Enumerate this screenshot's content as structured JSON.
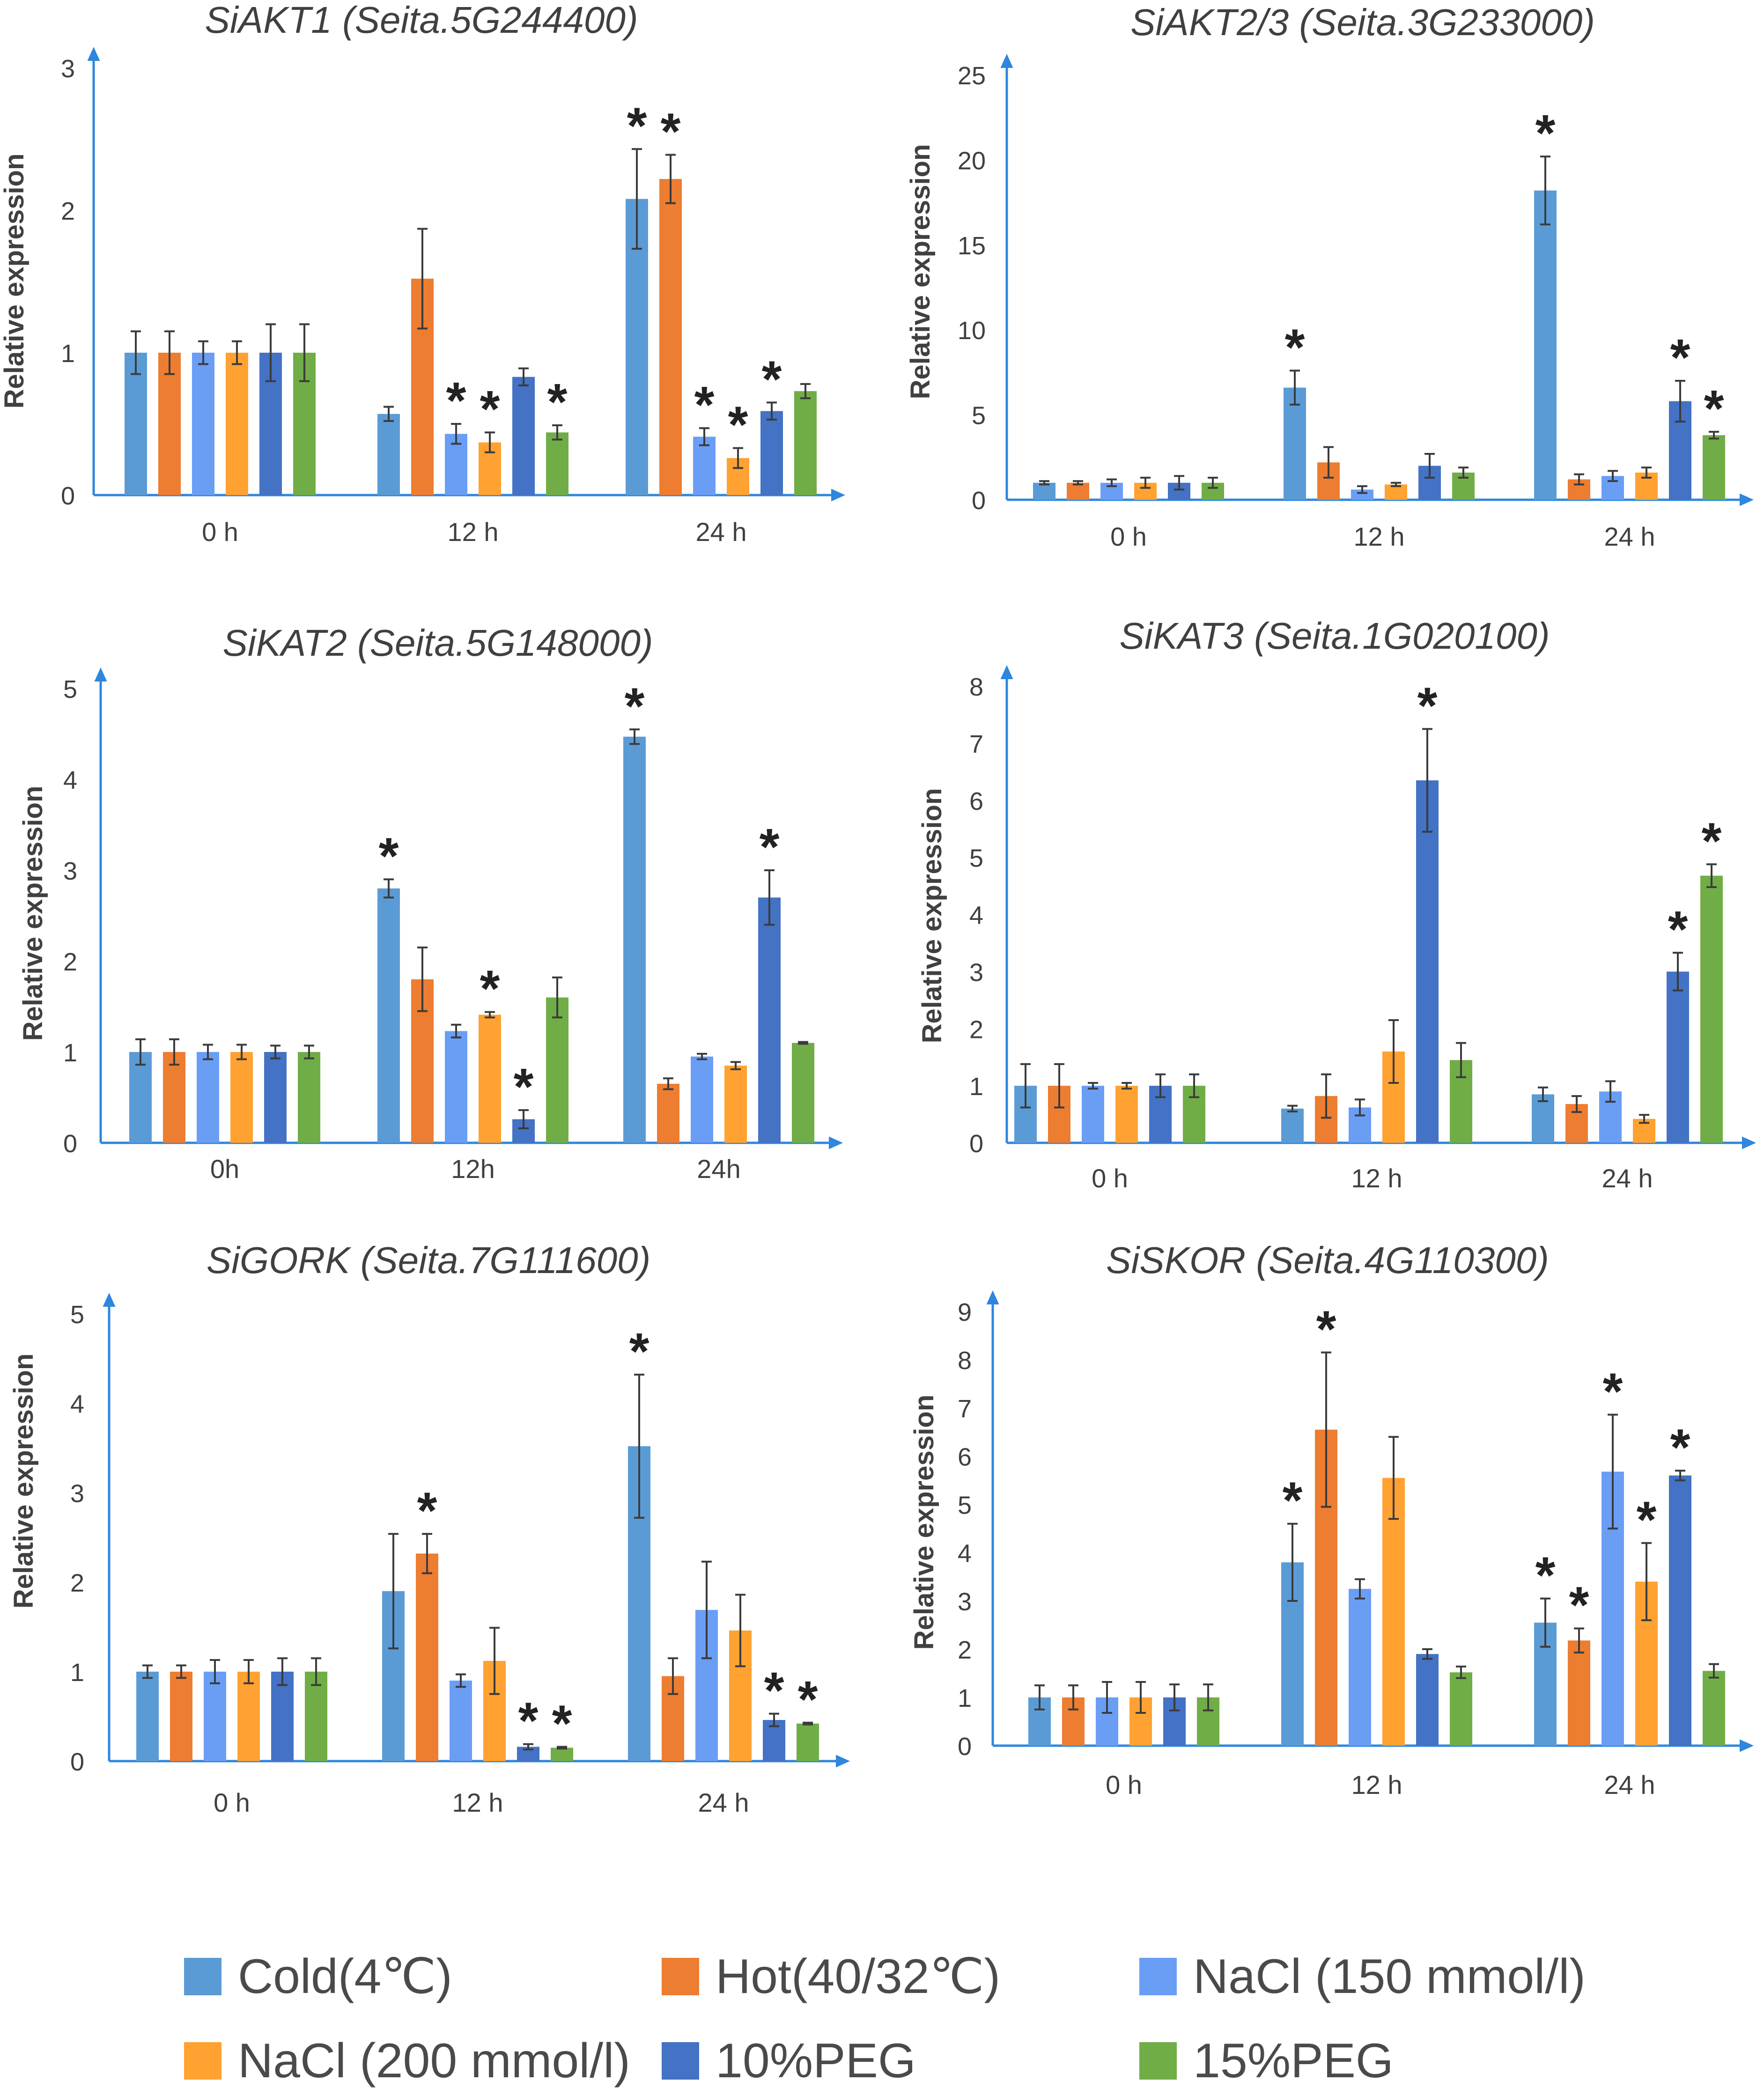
{
  "legend": [
    {
      "name": "Cold(4℃)",
      "color": "#5b9bd5"
    },
    {
      "name": "Hot(40/32℃)",
      "color": "#ed7d31"
    },
    {
      "name": "NaCl (150 mmol/l)",
      "color": "#6a9ef5"
    },
    {
      "name": "NaCl (200 mmol/l)",
      "color": "#ffa232"
    },
    {
      "name": "10%PEG",
      "color": "#4472c4"
    },
    {
      "name": "15%PEG",
      "color": "#70ad47"
    }
  ],
  "chart_data": [
    {
      "type": "bar",
      "title": "SiAKT1 (Seita.5G244400)",
      "ylabel": "Relative expression",
      "categories": [
        "0 h",
        "12 h",
        "24 h"
      ],
      "ylim": [
        0,
        3
      ],
      "yticks": [
        "0",
        "1",
        "2",
        "3"
      ],
      "series": [
        {
          "name": "Cold(4℃)",
          "values": [
            1.0,
            0.57,
            2.08
          ],
          "errors": [
            0.15,
            0.05,
            0.35
          ],
          "sig": [
            false,
            false,
            true
          ]
        },
        {
          "name": "Hot(40/32℃)",
          "values": [
            1.0,
            1.52,
            2.22
          ],
          "errors": [
            0.15,
            0.35,
            0.17
          ],
          "sig": [
            false,
            false,
            true
          ]
        },
        {
          "name": "NaCl (150 mmol/l)",
          "values": [
            1.0,
            0.43,
            0.41
          ],
          "errors": [
            0.08,
            0.07,
            0.06
          ],
          "sig": [
            false,
            true,
            true
          ]
        },
        {
          "name": "NaCl (200 mmol/l)",
          "values": [
            1.0,
            0.37,
            0.26
          ],
          "errors": [
            0.08,
            0.07,
            0.07
          ],
          "sig": [
            false,
            true,
            true
          ]
        },
        {
          "name": "10%PEG",
          "values": [
            1.0,
            0.83,
            0.59
          ],
          "errors": [
            0.2,
            0.06,
            0.06
          ],
          "sig": [
            false,
            false,
            true
          ]
        },
        {
          "name": "15%PEG",
          "values": [
            1.0,
            0.44,
            0.73
          ],
          "errors": [
            0.2,
            0.05,
            0.05
          ],
          "sig": [
            false,
            true,
            false
          ]
        }
      ]
    },
    {
      "type": "bar",
      "title": "SiAKT2/3 (Seita.3G233000)",
      "ylabel": "Relative expression",
      "categories": [
        "0 h",
        "12 h",
        "24 h"
      ],
      "ylim": [
        0,
        25
      ],
      "yticks": [
        "0",
        "5",
        "10",
        "15",
        "20",
        "25"
      ],
      "series": [
        {
          "name": "Cold(4℃)",
          "values": [
            1.0,
            6.6,
            18.2
          ],
          "errors": [
            0.1,
            1.0,
            2.0
          ],
          "sig": [
            false,
            true,
            true
          ]
        },
        {
          "name": "Hot(40/32℃)",
          "values": [
            1.0,
            2.2,
            1.2
          ],
          "errors": [
            0.1,
            0.9,
            0.3
          ],
          "sig": [
            false,
            false,
            false
          ]
        },
        {
          "name": "NaCl (150 mmol/l)",
          "values": [
            1.0,
            0.6,
            1.4
          ],
          "errors": [
            0.2,
            0.2,
            0.3
          ],
          "sig": [
            false,
            false,
            false
          ]
        },
        {
          "name": "NaCl (200 mmol/l)",
          "values": [
            1.0,
            0.9,
            1.6
          ],
          "errors": [
            0.3,
            0.1,
            0.3
          ],
          "sig": [
            false,
            false,
            false
          ]
        },
        {
          "name": "10%PEG",
          "values": [
            1.0,
            2.0,
            5.8
          ],
          "errors": [
            0.4,
            0.7,
            1.2
          ],
          "sig": [
            false,
            false,
            true
          ]
        },
        {
          "name": "15%PEG",
          "values": [
            1.0,
            1.6,
            3.8
          ],
          "errors": [
            0.3,
            0.3,
            0.2
          ],
          "sig": [
            false,
            false,
            true
          ]
        }
      ]
    },
    {
      "type": "bar",
      "title": "SiKAT2 (Seita.5G148000)",
      "ylabel": "Relative expression",
      "categories": [
        "0h",
        "12h",
        "24h"
      ],
      "ylim": [
        0,
        5
      ],
      "yticks": [
        "0",
        "1",
        "2",
        "3",
        "4",
        "5"
      ],
      "series": [
        {
          "name": "Cold(4℃)",
          "values": [
            1.0,
            2.8,
            4.47
          ],
          "errors": [
            0.14,
            0.1,
            0.08
          ],
          "sig": [
            false,
            true,
            true
          ]
        },
        {
          "name": "Hot(40/32℃)",
          "values": [
            1.0,
            1.8,
            0.65
          ],
          "errors": [
            0.14,
            0.35,
            0.06
          ],
          "sig": [
            false,
            false,
            false
          ]
        },
        {
          "name": "NaCl (150 mmol/l)",
          "values": [
            1.0,
            1.23,
            0.95
          ],
          "errors": [
            0.08,
            0.07,
            0.03
          ],
          "sig": [
            false,
            false,
            false
          ]
        },
        {
          "name": "NaCl (200 mmol/l)",
          "values": [
            1.0,
            1.41,
            0.85
          ],
          "errors": [
            0.08,
            0.03,
            0.04
          ],
          "sig": [
            false,
            true,
            false
          ]
        },
        {
          "name": "10%PEG",
          "values": [
            1.0,
            0.26,
            2.7
          ],
          "errors": [
            0.07,
            0.1,
            0.3
          ],
          "sig": [
            false,
            true,
            true
          ]
        },
        {
          "name": "15%PEG",
          "values": [
            1.0,
            1.6,
            1.1
          ],
          "errors": [
            0.07,
            0.22,
            0.01
          ],
          "sig": [
            false,
            false,
            false
          ]
        }
      ]
    },
    {
      "type": "bar",
      "title": "SiKAT3 (Seita.1G020100)",
      "ylabel": "Relative expression",
      "categories": [
        "0 h",
        "12 h",
        "24 h"
      ],
      "ylim": [
        0,
        8
      ],
      "yticks": [
        "0",
        "1",
        "2",
        "3",
        "4",
        "5",
        "6",
        "7",
        "8"
      ],
      "series": [
        {
          "name": "Cold(4℃)",
          "values": [
            1.0,
            0.6,
            0.85
          ],
          "errors": [
            0.38,
            0.05,
            0.12
          ],
          "sig": [
            false,
            false,
            false
          ]
        },
        {
          "name": "Hot(40/32℃)",
          "values": [
            1.0,
            0.82,
            0.68
          ],
          "errors": [
            0.38,
            0.38,
            0.14
          ],
          "sig": [
            false,
            false,
            false
          ]
        },
        {
          "name": "NaCl (150 mmol/l)",
          "values": [
            1.0,
            0.62,
            0.9
          ],
          "errors": [
            0.05,
            0.14,
            0.18
          ],
          "sig": [
            false,
            false,
            false
          ]
        },
        {
          "name": "NaCl (200 mmol/l)",
          "values": [
            1.0,
            1.6,
            0.42
          ],
          "errors": [
            0.05,
            0.55,
            0.07
          ],
          "sig": [
            false,
            false,
            false
          ]
        },
        {
          "name": "10%PEG",
          "values": [
            1.0,
            6.35,
            3.0
          ],
          "errors": [
            0.2,
            0.9,
            0.33
          ],
          "sig": [
            false,
            true,
            true
          ]
        },
        {
          "name": "15%PEG",
          "values": [
            1.0,
            1.45,
            4.68
          ],
          "errors": [
            0.2,
            0.3,
            0.2
          ],
          "sig": [
            false,
            false,
            true
          ]
        }
      ]
    },
    {
      "type": "bar",
      "title": "SiGORK (Seita.7G111600)",
      "ylabel": "Relative expression",
      "categories": [
        "0 h",
        "12 h",
        "24 h"
      ],
      "ylim": [
        0,
        5
      ],
      "yticks": [
        "0",
        "1",
        "2",
        "3",
        "4",
        "5"
      ],
      "series": [
        {
          "name": "Cold(4℃)",
          "values": [
            1.0,
            1.9,
            3.52
          ],
          "errors": [
            0.07,
            0.64,
            0.8
          ],
          "sig": [
            false,
            false,
            true
          ]
        },
        {
          "name": "Hot(40/32℃)",
          "values": [
            1.0,
            2.32,
            0.95
          ],
          "errors": [
            0.07,
            0.22,
            0.2
          ],
          "sig": [
            false,
            true,
            false
          ]
        },
        {
          "name": "NaCl (150 mmol/l)",
          "values": [
            1.0,
            0.9,
            1.69
          ],
          "errors": [
            0.13,
            0.07,
            0.54
          ],
          "sig": [
            false,
            false,
            false
          ]
        },
        {
          "name": "NaCl (200 mmol/l)",
          "values": [
            1.0,
            1.12,
            1.46
          ],
          "errors": [
            0.13,
            0.37,
            0.4
          ],
          "sig": [
            false,
            false,
            false
          ]
        },
        {
          "name": "10%PEG",
          "values": [
            1.0,
            0.16,
            0.46
          ],
          "errors": [
            0.15,
            0.03,
            0.07
          ],
          "sig": [
            false,
            true,
            true
          ]
        },
        {
          "name": "15%PEG",
          "values": [
            1.0,
            0.15,
            0.42
          ],
          "errors": [
            0.15,
            0.01,
            0.01
          ],
          "sig": [
            false,
            true,
            true
          ]
        }
      ]
    },
    {
      "type": "bar",
      "title": "SiSKOR (Seita.4G110300)",
      "ylabel": "Relative expression",
      "categories": [
        "0 h",
        "12 h",
        "24 h"
      ],
      "ylim": [
        0,
        9
      ],
      "yticks": [
        "0",
        "1",
        "2",
        "3",
        "4",
        "5",
        "6",
        "7",
        "8",
        "9"
      ],
      "series": [
        {
          "name": "Cold(4℃)",
          "values": [
            1.0,
            3.8,
            2.55
          ],
          "errors": [
            0.25,
            0.8,
            0.5
          ],
          "sig": [
            false,
            true,
            true
          ]
        },
        {
          "name": "Hot(40/32℃)",
          "values": [
            1.0,
            6.55,
            2.18
          ],
          "errors": [
            0.25,
            1.6,
            0.25
          ],
          "sig": [
            false,
            true,
            true
          ]
        },
        {
          "name": "NaCl (150 mmol/l)",
          "values": [
            1.0,
            3.25,
            5.68
          ],
          "errors": [
            0.32,
            0.2,
            1.18
          ],
          "sig": [
            false,
            false,
            true
          ]
        },
        {
          "name": "NaCl (200 mmol/l)",
          "values": [
            1.0,
            5.55,
            3.4
          ],
          "errors": [
            0.32,
            0.85,
            0.8
          ],
          "sig": [
            false,
            false,
            true
          ]
        },
        {
          "name": "10%PEG",
          "values": [
            1.0,
            1.9,
            5.6
          ],
          "errors": [
            0.27,
            0.1,
            0.1
          ],
          "sig": [
            false,
            false,
            true
          ]
        },
        {
          "name": "15%PEG",
          "values": [
            1.0,
            1.52,
            1.55
          ],
          "errors": [
            0.27,
            0.12,
            0.14
          ],
          "sig": [
            false,
            false,
            false
          ]
        }
      ]
    }
  ]
}
